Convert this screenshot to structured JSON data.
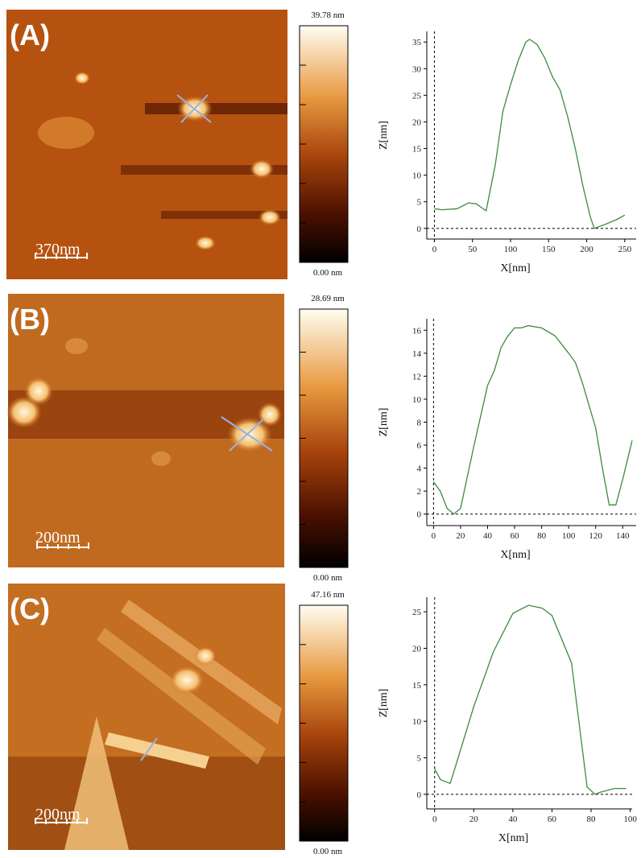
{
  "panels": [
    {
      "label": "(A)",
      "scale_bar": "370nm",
      "colorbar_max": "39.78 nm",
      "colorbar_min": "0.00 nm"
    },
    {
      "label": "(B)",
      "scale_bar": "200nm",
      "colorbar_max": "28.69 nm",
      "colorbar_min": "0.00 nm"
    },
    {
      "label": "(C)",
      "scale_bar": "200nm",
      "colorbar_max": "47.16 nm",
      "colorbar_min": "0.00 nm"
    }
  ],
  "chart_data": [
    {
      "type": "line",
      "xlabel": "X[nm]",
      "ylabel": "Z[nm]",
      "color": "#3c8c3c",
      "x": [
        0,
        10,
        30,
        45,
        55,
        68,
        80,
        90,
        100,
        110,
        120,
        125,
        135,
        145,
        155,
        165,
        175,
        185,
        195,
        205,
        210,
        225,
        240,
        250
      ],
      "values": [
        3.7,
        3.5,
        3.7,
        4.8,
        4.6,
        3.3,
        12,
        22,
        27,
        31.5,
        35,
        35.5,
        34.5,
        32,
        28.5,
        26,
        21,
        15,
        8,
        2,
        0,
        0.8,
        1.7,
        2.5
      ],
      "xlim": [
        -10,
        265
      ],
      "ylim": [
        -2,
        37
      ],
      "xticks": [
        0,
        50,
        100,
        150,
        200,
        250
      ],
      "yticks": [
        0,
        5,
        10,
        15,
        20,
        25,
        30,
        35
      ]
    },
    {
      "type": "line",
      "xlabel": "X[nm]",
      "ylabel": "Z[nm]",
      "color": "#3c8c3c",
      "x": [
        0,
        5,
        10,
        15,
        20,
        30,
        40,
        45,
        50,
        55,
        60,
        65,
        70,
        80,
        90,
        100,
        105,
        110,
        120,
        125,
        130,
        135,
        140,
        147
      ],
      "values": [
        2.8,
        2,
        0.5,
        0,
        0.5,
        6,
        11.2,
        12.5,
        14.5,
        15.5,
        16.2,
        16.2,
        16.4,
        16.2,
        15.5,
        14,
        13.2,
        11.5,
        7.5,
        4,
        0.8,
        0.8,
        3,
        6.4
      ],
      "xlim": [
        -5,
        150
      ],
      "ylim": [
        -1,
        17
      ],
      "xticks": [
        0,
        20,
        40,
        60,
        80,
        100,
        120,
        140
      ],
      "yticks": [
        0,
        2,
        4,
        6,
        8,
        10,
        12,
        14,
        16
      ]
    },
    {
      "type": "line",
      "xlabel": "X[nm]",
      "ylabel": "Z[nm]",
      "color": "#3c8c3c",
      "x": [
        0,
        3,
        8,
        12,
        20,
        30,
        40,
        48,
        55,
        60,
        70,
        78,
        82,
        85,
        92,
        98
      ],
      "values": [
        3.5,
        2,
        1.5,
        5,
        12,
        19.5,
        24.8,
        25.9,
        25.5,
        24.5,
        18,
        1,
        0,
        0.3,
        0.8,
        0.8
      ],
      "xlim": [
        -4,
        101
      ],
      "ylim": [
        -2,
        27
      ],
      "xticks": [
        0,
        20,
        40,
        60,
        80,
        100
      ],
      "yticks": [
        0,
        5,
        10,
        15,
        20,
        25
      ]
    }
  ]
}
